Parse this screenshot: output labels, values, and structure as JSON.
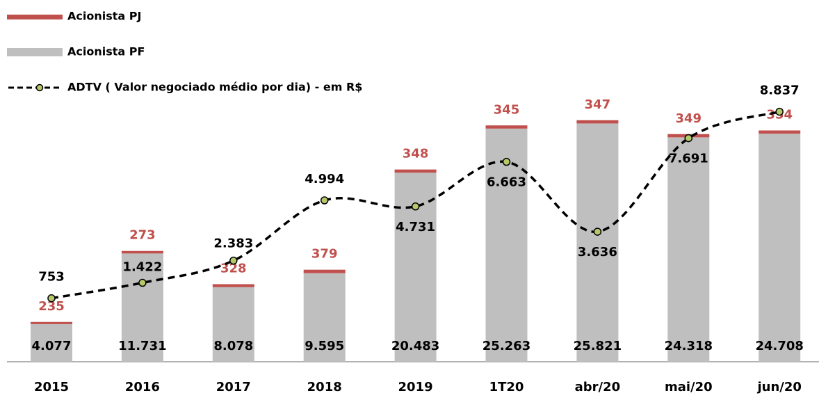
{
  "chart_data": {
    "type": "bar",
    "categories": [
      "2015",
      "2016",
      "2017",
      "2018",
      "2019",
      "1T20",
      "abr/20",
      "mai/20",
      "jun/20"
    ],
    "series": [
      {
        "name": "Acionista PJ",
        "type": "bar",
        "color": "#c0504d",
        "values": [
          235,
          273,
          328,
          379,
          348,
          345,
          347,
          349,
          354
        ]
      },
      {
        "name": "Acionista PF",
        "type": "bar",
        "color": "#bfbfbf",
        "values": [
          4077,
          11731,
          8078,
          9595,
          20483,
          25263,
          25821,
          24318,
          24708
        ],
        "value_labels": [
          "4.077",
          "11.731",
          "8.078",
          "9.595",
          "20.483",
          "25.263",
          "25.821",
          "24.318",
          "24.708"
        ]
      },
      {
        "name": "ADTV ( Valor negociado médio por dia) - em R$",
        "type": "line",
        "axis": "y2",
        "color": "#000000",
        "marker_color": "#b5c96b",
        "values": [
          753,
          1422,
          2383,
          4994,
          4731,
          6663,
          3636,
          7691,
          8837
        ],
        "value_labels": [
          "753",
          "1.422",
          "2.383",
          "4.994",
          "4.731",
          "6.663",
          "3.636",
          "7.691",
          "8.837"
        ]
      }
    ],
    "ylim": [
      0,
      30000
    ],
    "y2lim": [
      -2000,
      10000
    ]
  }
}
